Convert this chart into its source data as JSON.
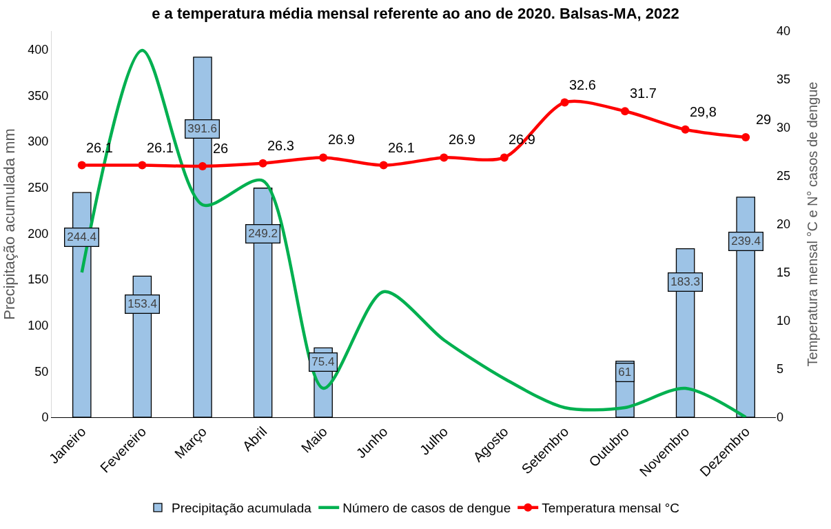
{
  "chart_data": {
    "type": "bar",
    "title": "e a temperatura média mensal referente ao ano de 2020. Balsas-MA, 2022",
    "ylabel": "Precipitação acumulada mm",
    "y2label": "Temperatura mensal °C e N° casos de dengue",
    "categories": [
      "Janeiro",
      "Fevereiro",
      "Março",
      "Abril",
      "Maio",
      "Junho",
      "Julho",
      "Agosto",
      "Setembro",
      "Outubro",
      "Novembro",
      "Dezembro"
    ],
    "series": [
      {
        "name": "Precipitação acumulada",
        "color": "#9dc3e6",
        "values": [
          244.4,
          153.4,
          391.6,
          249.2,
          75.4,
          null,
          null,
          null,
          null,
          61,
          183.3,
          239.4
        ],
        "value_labels": [
          "244.4",
          "153.4",
          "391.6",
          "249.2",
          "75.4",
          null,
          null,
          null,
          null,
          "61",
          "183.3",
          "239.4"
        ]
      },
      {
        "name": "Número de casos de dengue",
        "type": "line",
        "axis": "y2",
        "color": "#00b050",
        "marker": "none",
        "values": [
          15,
          38,
          22,
          24.5,
          3,
          13,
          8,
          4,
          1,
          1,
          3,
          0
        ]
      },
      {
        "name": "Temperatura mensal °C",
        "type": "line",
        "axis": "y2",
        "color": "#ff0000",
        "marker": "circle",
        "values": [
          26.1,
          26.1,
          26,
          26.3,
          26.9,
          26.1,
          26.9,
          26.9,
          32.6,
          31.7,
          29.8,
          29
        ],
        "value_labels": [
          "26.1",
          "26.1",
          "26",
          "26.3",
          "26.9",
          "26.1",
          "26.9",
          "26.9",
          "32.6",
          "31.7",
          "29,8",
          "29"
        ]
      }
    ],
    "ylim": [
      0,
      420
    ],
    "yticks": [
      0,
      50,
      100,
      150,
      200,
      250,
      300,
      350,
      400
    ],
    "y2lim": [
      0,
      40
    ],
    "y2ticks": [
      0,
      5,
      10,
      15,
      20,
      25,
      30,
      35,
      40
    ],
    "grid": false,
    "legend": "bottom"
  }
}
